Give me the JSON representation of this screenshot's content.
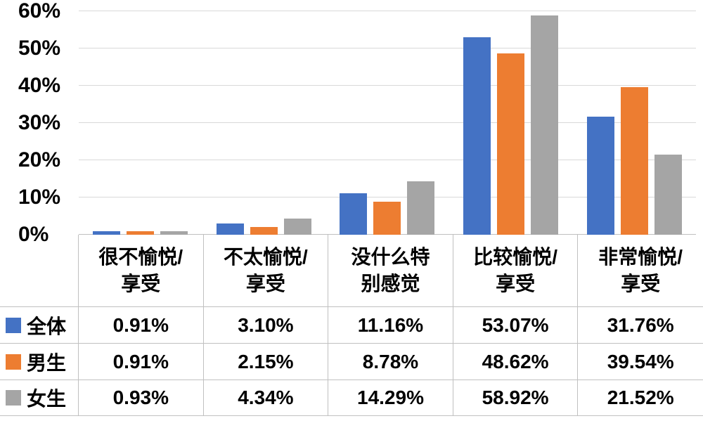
{
  "chart_data": {
    "type": "bar",
    "title": "",
    "xlabel": "",
    "ylabel": "",
    "ylim": [
      0,
      60
    ],
    "grid": true,
    "legend_position": "table-left",
    "yticks": [
      {
        "value": 0,
        "label": "0%"
      },
      {
        "value": 10,
        "label": "10%"
      },
      {
        "value": 20,
        "label": "20%"
      },
      {
        "value": 30,
        "label": "30%"
      },
      {
        "value": 40,
        "label": "40%"
      },
      {
        "value": 50,
        "label": "50%"
      },
      {
        "value": 60,
        "label": "60%"
      }
    ],
    "categories": [
      "很不愉悦/享受",
      "不太愉悦/享受",
      "没什么特别感觉",
      "比较愉悦/享受",
      "非常愉悦/享受"
    ],
    "category_labels": [
      [
        "很不愉悦/",
        "享受"
      ],
      [
        "不太愉悦/",
        "享受"
      ],
      [
        "没什么特",
        "别感觉"
      ],
      [
        "比较愉悦/",
        "享受"
      ],
      [
        "非常愉悦/",
        "享受"
      ]
    ],
    "series": [
      {
        "name": "全体",
        "color": "#4472C4",
        "values": [
          0.91,
          3.1,
          11.16,
          53.07,
          31.76
        ],
        "labels": [
          "0.91%",
          "3.10%",
          "11.16%",
          "53.07%",
          "31.76%"
        ]
      },
      {
        "name": "男生",
        "color": "#ED7D31",
        "values": [
          0.91,
          2.15,
          8.78,
          48.62,
          39.54
        ],
        "labels": [
          "0.91%",
          "2.15%",
          "8.78%",
          "48.62%",
          "39.54%"
        ]
      },
      {
        "name": "女生",
        "color": "#A5A5A5",
        "values": [
          0.93,
          4.34,
          14.29,
          58.92,
          21.52
        ],
        "labels": [
          "0.93%",
          "4.34%",
          "14.29%",
          "58.92%",
          "21.52%"
        ]
      }
    ]
  }
}
